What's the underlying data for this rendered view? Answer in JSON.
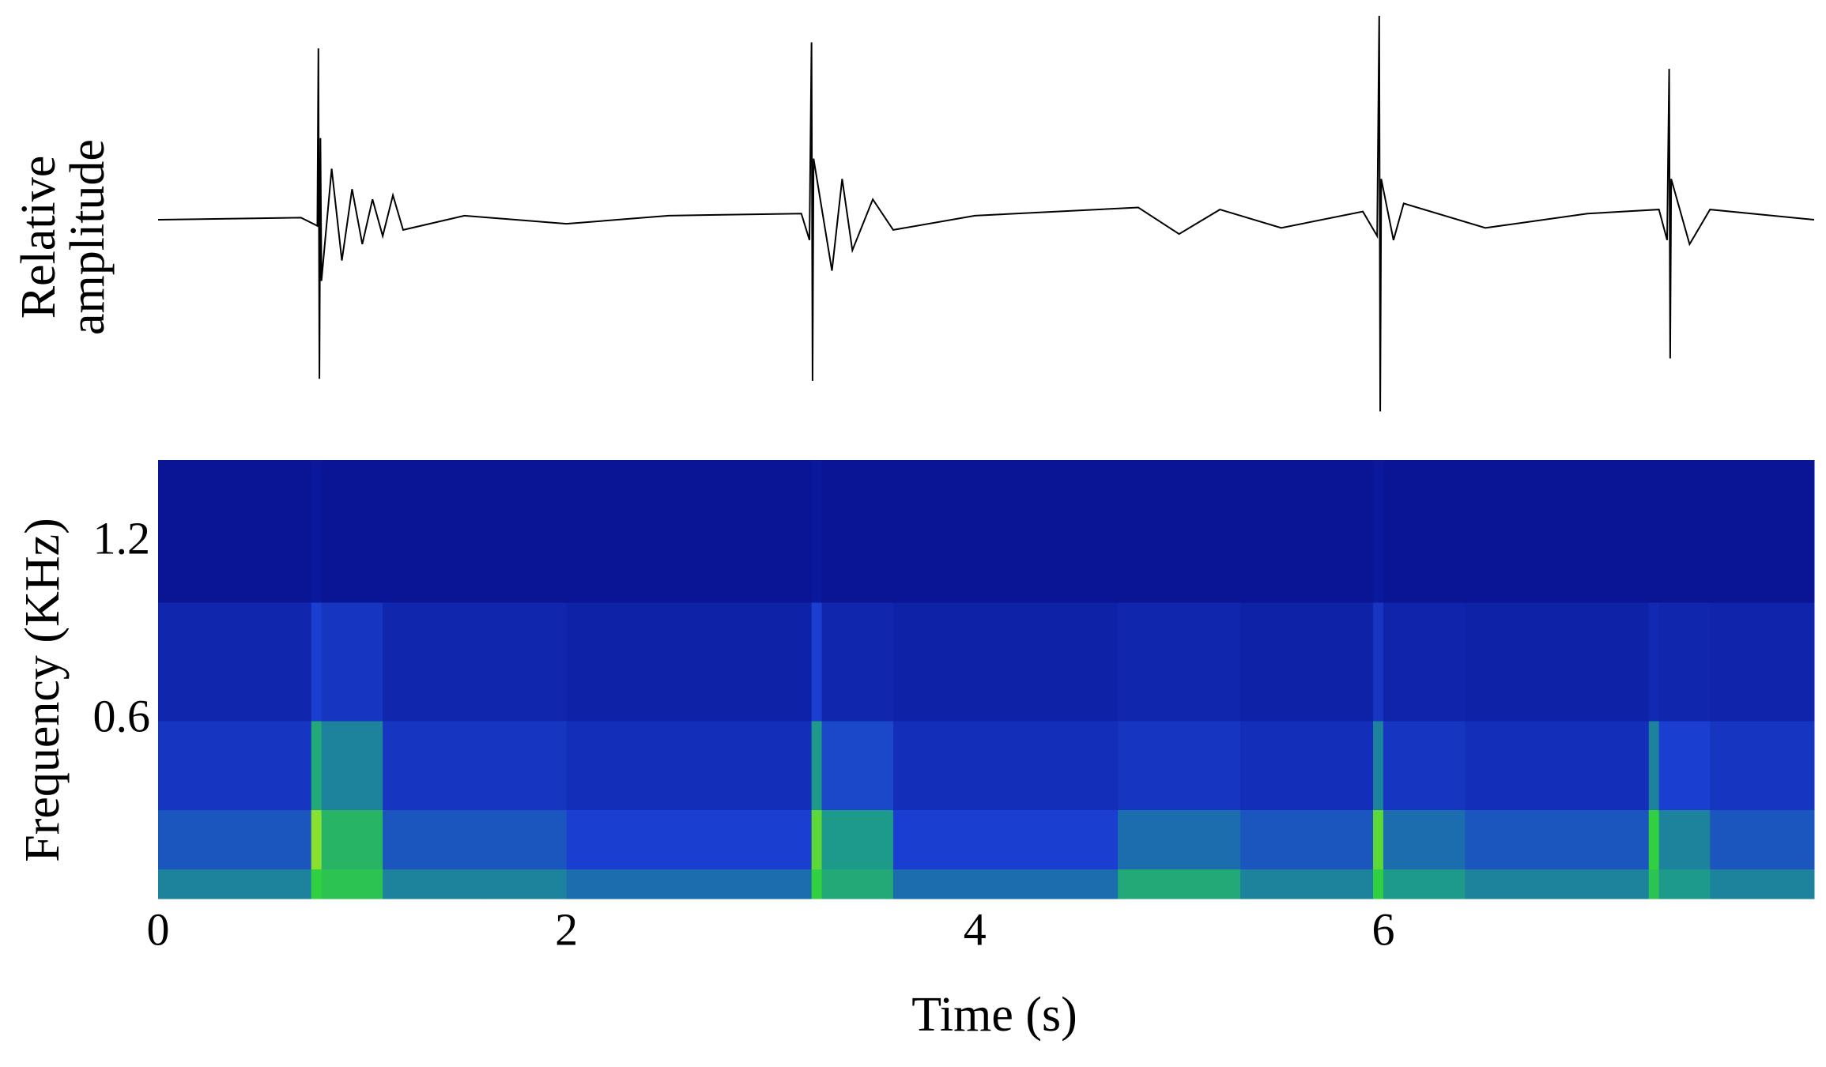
{
  "chart_data": [
    {
      "type": "line",
      "ylabel": "Relative amplitude",
      "color": "#000000",
      "x": [
        0,
        0.7,
        0.78,
        0.785,
        0.79,
        0.795,
        0.8,
        0.85,
        0.9,
        0.95,
        1.0,
        1.05,
        1.1,
        1.15,
        1.2,
        1.5,
        2.0,
        2.5,
        3.15,
        3.19,
        3.2,
        3.205,
        3.21,
        3.3,
        3.35,
        3.4,
        3.5,
        3.6,
        4.0,
        4.8,
        5.0,
        5.2,
        5.5,
        5.9,
        5.97,
        5.98,
        5.985,
        5.99,
        6.05,
        6.1,
        6.5,
        7.0,
        7.35,
        7.39,
        7.4,
        7.405,
        7.41,
        7.5,
        7.6,
        8.11
      ],
      "values": [
        0,
        0.01,
        -0.03,
        0.84,
        -0.78,
        0.4,
        -0.3,
        0.25,
        -0.2,
        0.15,
        -0.12,
        0.1,
        -0.08,
        0.12,
        -0.05,
        0.02,
        -0.02,
        0.02,
        0.03,
        -0.1,
        0.87,
        -0.79,
        0.3,
        -0.25,
        0.2,
        -0.15,
        0.1,
        -0.05,
        0.02,
        0.06,
        -0.07,
        0.05,
        -0.04,
        0.04,
        -0.08,
        1.0,
        -0.94,
        0.2,
        -0.1,
        0.08,
        -0.04,
        0.03,
        0.05,
        -0.1,
        0.74,
        -0.68,
        0.2,
        -0.12,
        0.05,
        0
      ],
      "xlim": [
        0,
        8.11
      ],
      "ylim": [
        -1,
        1
      ]
    },
    {
      "type": "heatmap",
      "xlabel": "Time (s)",
      "ylabel": "Frequency (KHz)",
      "x_edges": [
        0,
        0.75,
        0.8,
        1.1,
        1.6,
        2.0,
        3.2,
        3.25,
        3.6,
        4.7,
        5.3,
        5.95,
        6.0,
        6.4,
        7.3,
        7.35,
        7.6,
        8.11
      ],
      "y_edges": [
        0,
        0.1,
        0.3,
        0.6,
        1.0,
        1.48
      ],
      "z": [
        [
          0.45,
          0.7,
          0.65,
          0.45,
          0.45,
          0.4,
          0.7,
          0.55,
          0.4,
          0.55,
          0.45,
          0.7,
          0.5,
          0.45,
          0.65,
          0.5,
          0.45
        ],
        [
          0.35,
          0.8,
          0.6,
          0.35,
          0.35,
          0.3,
          0.75,
          0.5,
          0.3,
          0.4,
          0.35,
          0.75,
          0.4,
          0.35,
          0.7,
          0.45,
          0.35
        ],
        [
          0.25,
          0.55,
          0.45,
          0.25,
          0.25,
          0.22,
          0.5,
          0.32,
          0.22,
          0.25,
          0.22,
          0.45,
          0.25,
          0.22,
          0.45,
          0.3,
          0.25
        ],
        [
          0.18,
          0.3,
          0.25,
          0.18,
          0.18,
          0.16,
          0.3,
          0.18,
          0.16,
          0.18,
          0.16,
          0.25,
          0.17,
          0.16,
          0.2,
          0.18,
          0.17
        ],
        [
          0.1,
          0.12,
          0.1,
          0.1,
          0.1,
          0.1,
          0.12,
          0.1,
          0.1,
          0.1,
          0.1,
          0.12,
          0.1,
          0.1,
          0.1,
          0.1,
          0.1
        ]
      ],
      "xlim": [
        0,
        8.11
      ],
      "ylim": [
        0,
        1.48
      ],
      "xticks": [
        0,
        2,
        4,
        6
      ],
      "yticks": [
        0.6,
        1.2
      ]
    }
  ]
}
